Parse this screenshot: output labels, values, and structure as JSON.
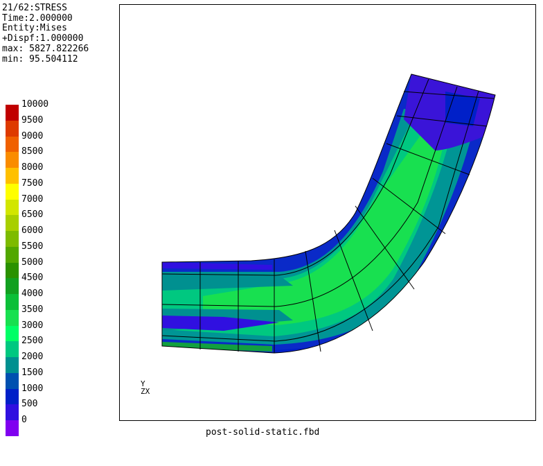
{
  "info": {
    "step": "21/62:STRESS",
    "time": "Time:2.000000",
    "entity": "Entity:Mises",
    "dispf": "+Dispf:1.000000",
    "max": "max: 5827.822266",
    "min": "min: 95.504112"
  },
  "legend": [
    {
      "label": "10000",
      "color": "#c00000"
    },
    {
      "label": "9500",
      "color": "#de3a00"
    },
    {
      "label": "9000",
      "color": "#f06000"
    },
    {
      "label": "8500",
      "color": "#fa8c00"
    },
    {
      "label": "8000",
      "color": "#ffc000"
    },
    {
      "label": "7500",
      "color": "#ffff00"
    },
    {
      "label": "7000",
      "color": "#d2e600"
    },
    {
      "label": "6500",
      "color": "#a8cf00"
    },
    {
      "label": "6000",
      "color": "#7dbb00"
    },
    {
      "label": "5500",
      "color": "#52a700"
    },
    {
      "label": "5000",
      "color": "#2a9100"
    },
    {
      "label": "4500",
      "color": "#12a020"
    },
    {
      "label": "4000",
      "color": "#0cbf38"
    },
    {
      "label": "3500",
      "color": "#18e050"
    },
    {
      "label": "3000",
      "color": "#00ff66"
    },
    {
      "label": "2500",
      "color": "#00c880"
    },
    {
      "label": "2000",
      "color": "#009090"
    },
    {
      "label": "1500",
      "color": "#0050b0"
    },
    {
      "label": "1000",
      "color": "#0020c8"
    },
    {
      "label": "500",
      "color": "#3010e0"
    },
    {
      "label": "0",
      "color": "#8000f0"
    }
  ],
  "axis": {
    "y": "Y",
    "z": "Z",
    "x": "X"
  },
  "filename": "post-solid-static.fbd"
}
